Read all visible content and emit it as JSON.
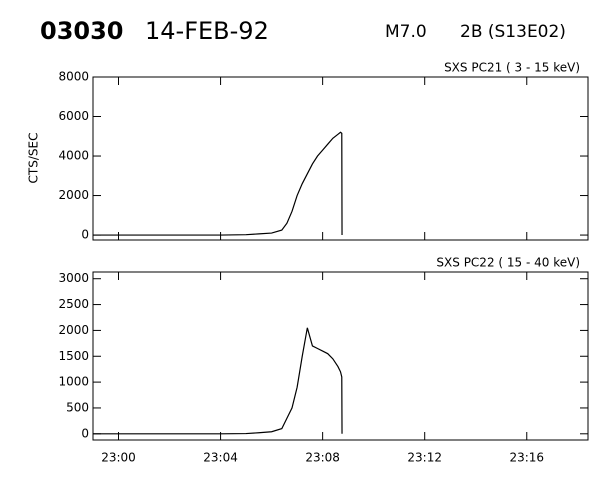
{
  "header": {
    "event": "03030",
    "date": "14-FEB-92",
    "class": "M7.0",
    "region": "2B (S13E02)"
  },
  "chart_data": [
    {
      "type": "line",
      "title": "SXS PC21 (  3 - 15 keV)",
      "y_label": "CTS/SEC",
      "x": [
        -1,
        0,
        1,
        2,
        3,
        4,
        5,
        5.5,
        6,
        6.4,
        6.6,
        6.8,
        7.0,
        7.2,
        7.4,
        7.6,
        7.8,
        8.0,
        8.2,
        8.4,
        8.6,
        8.7,
        8.75,
        8.76
      ],
      "series": [
        {
          "color": "#000000",
          "values": [
            0,
            0,
            0,
            0,
            0,
            0,
            20,
            60,
            100,
            250,
            600,
            1200,
            2000,
            2600,
            3100,
            3600,
            4000,
            4300,
            4600,
            4900,
            5100,
            5200,
            5150,
            0
          ]
        }
      ],
      "xlim": [
        -1,
        18.4
      ],
      "xticks": [
        0,
        4,
        8,
        12,
        16
      ],
      "ylim": [
        -250,
        8000
      ],
      "yticks": [
        0,
        2000,
        4000,
        6000,
        8000
      ],
      "grid": false
    },
    {
      "type": "line",
      "title": "SXS PC22 ( 15 - 40 keV)",
      "x": [
        -1,
        0,
        1,
        2,
        3,
        4,
        5,
        5.5,
        6,
        6.4,
        6.6,
        6.8,
        7.0,
        7.2,
        7.4,
        7.6,
        7.8,
        8.0,
        8.2,
        8.4,
        8.6,
        8.7,
        8.75,
        8.76
      ],
      "series": [
        {
          "color": "#000000",
          "values": [
            0,
            0,
            0,
            0,
            0,
            0,
            5,
            20,
            40,
            100,
            300,
            500,
            900,
            1500,
            2050,
            1700,
            1650,
            1600,
            1550,
            1450,
            1300,
            1200,
            1100,
            0
          ]
        }
      ],
      "xlim": [
        -1,
        18.4
      ],
      "xticks": [
        {
          "value": 0,
          "label": "23:00"
        },
        {
          "value": 4,
          "label": "23:04"
        },
        {
          "value": 8,
          "label": "23:08"
        },
        {
          "value": 12,
          "label": "23:12"
        },
        {
          "value": 16,
          "label": "23:16"
        }
      ],
      "ylim": [
        -120,
        3130
      ],
      "yticks": [
        0,
        500,
        1000,
        1500,
        2000,
        2500,
        3000
      ],
      "grid": false
    }
  ]
}
